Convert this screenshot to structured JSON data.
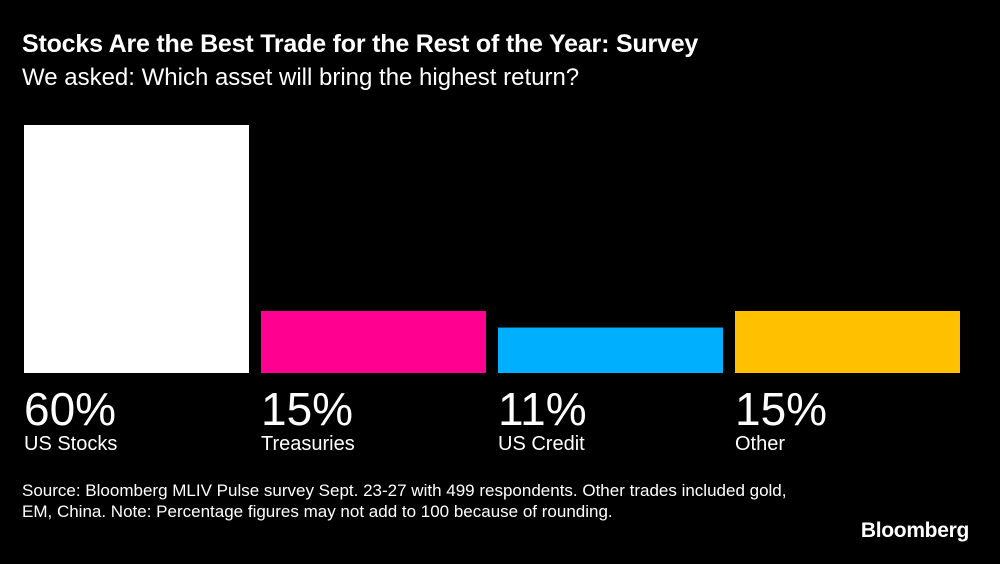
{
  "title": "Stocks Are the Best Trade for the Rest of the Year: Survey",
  "subtitle": "We asked: Which asset will bring the highest return?",
  "chart_data": {
    "type": "bar",
    "categories": [
      "US Stocks",
      "Treasuries",
      "US Credit",
      "Other"
    ],
    "values": [
      60,
      15,
      11,
      15
    ],
    "value_labels": [
      "60%",
      "15%",
      "11%",
      "15%"
    ],
    "colors": [
      "#ffffff",
      "#ff0090",
      "#00b0ff",
      "#ffc000"
    ],
    "ylim": [
      0,
      60
    ],
    "title": "Stocks Are the Best Trade for the Rest of the Year: Survey",
    "xlabel": "",
    "ylabel": ""
  },
  "source": "Source: Bloomberg MLIV Pulse survey Sept. 23-27 with 499 respondents. Other trades included gold, EM, China. Note: Percentage figures may not add to 100 because of rounding.",
  "brand": "Bloomberg"
}
